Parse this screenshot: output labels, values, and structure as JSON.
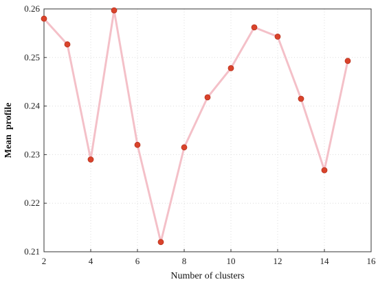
{
  "chart_data": {
    "type": "line",
    "title": "",
    "xlabel": "Number of clusters",
    "ylabel": "Mean  profile",
    "xlim": [
      2,
      16
    ],
    "ylim": [
      0.21,
      0.26
    ],
    "xticks": [
      2,
      4,
      6,
      8,
      10,
      12,
      14,
      16
    ],
    "yticks": [
      0.21,
      0.22,
      0.23,
      0.24,
      0.25,
      0.26
    ],
    "grid": true,
    "colors": {
      "line": "#f4c0c8",
      "marker": "#d9432b",
      "marker_edge": "#b8321e"
    },
    "series": [
      {
        "x": [
          2,
          3,
          4,
          5,
          6,
          7,
          8,
          9,
          10,
          11,
          12,
          13,
          14,
          15
        ],
        "values": [
          0.258,
          0.2527,
          0.229,
          0.2597,
          0.232,
          0.212,
          0.2315,
          0.2418,
          0.2478,
          0.2562,
          0.2543,
          0.2415,
          0.2268,
          0.2493
        ]
      }
    ]
  }
}
